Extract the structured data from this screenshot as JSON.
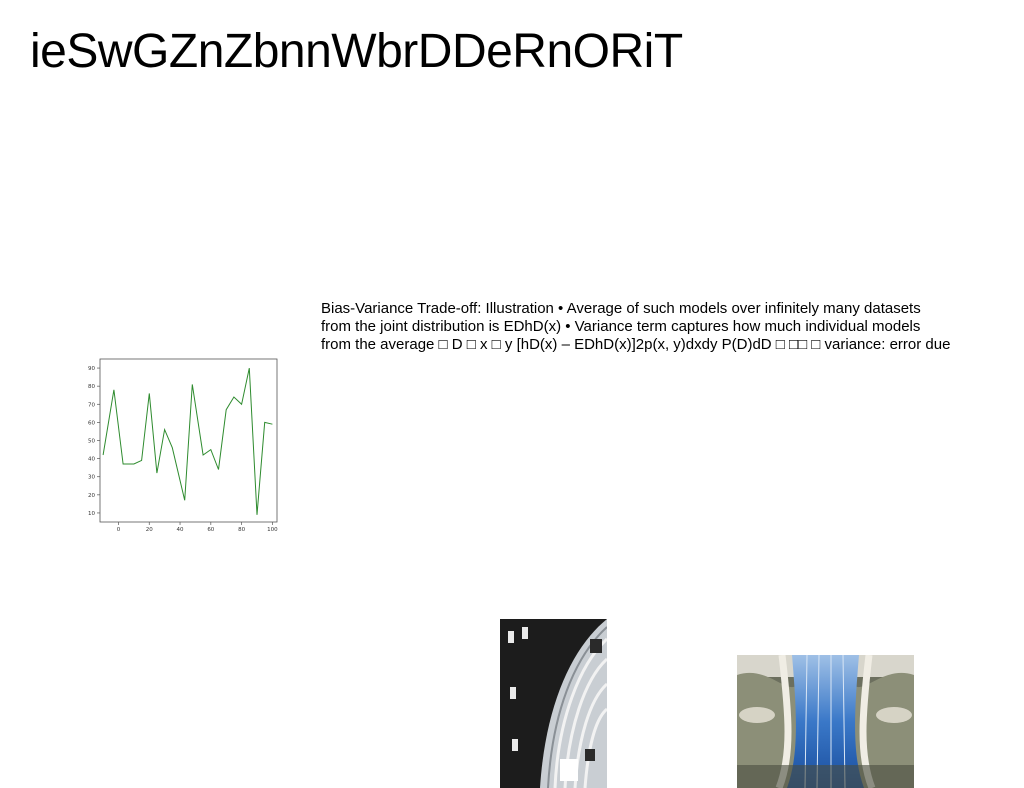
{
  "page": {
    "title": "ieSwGZnZbnnWbrDDeRnORiT",
    "body_lines": [
      "Bias-Variance Trade-off: Illustration • Average of such models over infinitely many datasets",
      "from the joint distribution is EDhD(x) • Variance term captures how much individual models",
      "from the average □ D □ x □ y [hD(x) – EDhD(x)]2p(x, y)dxdy P(D)dD □ □□ □ variance: error due"
    ]
  },
  "chart_data": {
    "type": "line",
    "color": "#2e8b2e",
    "x": [
      -10,
      -3,
      3,
      10,
      15,
      20,
      25,
      30,
      35,
      43,
      48,
      55,
      60,
      65,
      70,
      75,
      80,
      85,
      90,
      95,
      100
    ],
    "values": [
      42,
      78,
      37,
      37,
      39,
      76,
      32,
      56,
      46,
      17,
      81,
      42,
      45,
      34,
      67,
      74,
      70,
      90,
      9,
      60,
      59
    ],
    "xticks": [
      0,
      20,
      40,
      60,
      80,
      100
    ],
    "yticks": [
      10,
      20,
      30,
      40,
      50,
      60,
      70,
      80,
      90
    ],
    "xlim": [
      -12,
      103
    ],
    "ylim": [
      5,
      95
    ],
    "grid": false
  },
  "images": {
    "photo_a": {
      "name": "architecture-detail-photo"
    },
    "photo_b": {
      "name": "blue-atrium-photo"
    }
  }
}
